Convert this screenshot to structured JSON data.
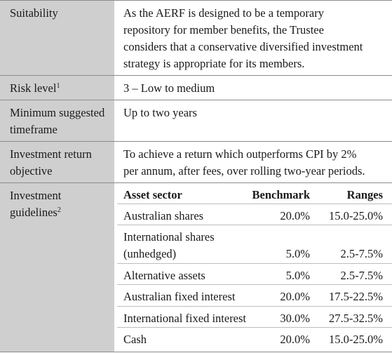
{
  "rows": {
    "suitability": {
      "label": "Suitability",
      "lines": [
        "As the AERF is designed to be a temporary",
        "repository for member benefits, the Trustee",
        "considers that a conservative diversified investment",
        "strategy is appropriate for its members."
      ]
    },
    "risk": {
      "label": "Risk level",
      "sup": "1",
      "value": "3 – Low to medium"
    },
    "timeframe": {
      "label_lines": [
        "Minimum suggested",
        "timeframe"
      ],
      "value": "Up to two years"
    },
    "return": {
      "label_lines": [
        "Investment return",
        "objective"
      ],
      "lines": [
        "To achieve a return which outperforms CPI by 2%",
        "per annum, after fees, over rolling two-year periods."
      ]
    },
    "guidelines": {
      "label_lines": [
        "Investment",
        "guidelines"
      ],
      "sup": "2",
      "headers": {
        "sector": "Asset sector",
        "benchmark": "Benchmark",
        "ranges": "Ranges"
      },
      "items": [
        {
          "sector": [
            "Australian shares"
          ],
          "benchmark": "20.0%",
          "range": "15.0-25.0%"
        },
        {
          "sector": [
            "International shares",
            "(unhedged)"
          ],
          "benchmark": "5.0%",
          "range": "2.5-7.5%"
        },
        {
          "sector": [
            "Alternative assets"
          ],
          "benchmark": "5.0%",
          "range": "2.5-7.5%"
        },
        {
          "sector": [
            "Australian fixed interest"
          ],
          "benchmark": "20.0%",
          "range": "17.5-22.5%"
        },
        {
          "sector": [
            "International fixed interest"
          ],
          "benchmark": "30.0%",
          "range": "27.5-32.5%"
        },
        {
          "sector": [
            "Cash"
          ],
          "benchmark": "20.0%",
          "range": "15.0-25.0%"
        }
      ]
    }
  }
}
